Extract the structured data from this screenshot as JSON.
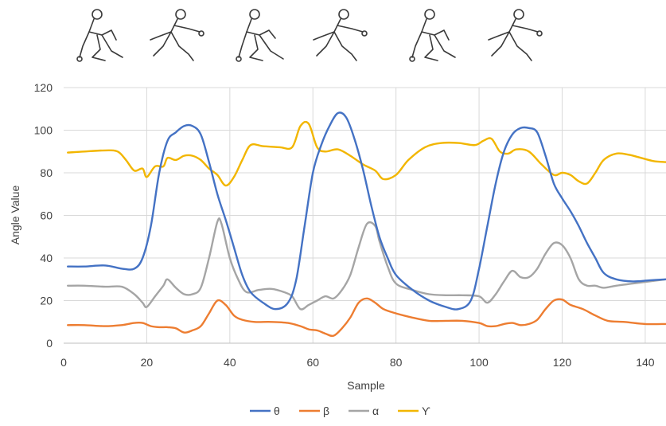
{
  "chart_data": {
    "type": "line",
    "title": "",
    "xlabel": "Sample",
    "ylabel": "Angle Value",
    "xlim": [
      0,
      145
    ],
    "ylim": [
      0,
      120
    ],
    "xticks": [
      0,
      20,
      40,
      60,
      80,
      100,
      120,
      140
    ],
    "yticks": [
      0,
      20,
      40,
      60,
      80,
      100,
      120
    ],
    "grid": true,
    "legend": "bottom-center",
    "series": [
      {
        "name": "θ",
        "color": "#4472C4",
        "points": [
          [
            1,
            36
          ],
          [
            5,
            36
          ],
          [
            10,
            36.5
          ],
          [
            14,
            35
          ],
          [
            17,
            35
          ],
          [
            19,
            40
          ],
          [
            21,
            55
          ],
          [
            23,
            80
          ],
          [
            25,
            95
          ],
          [
            27,
            99
          ],
          [
            29,
            102
          ],
          [
            31,
            102
          ],
          [
            33,
            98
          ],
          [
            35,
            85
          ],
          [
            37,
            70
          ],
          [
            39,
            58
          ],
          [
            41,
            45
          ],
          [
            43,
            32
          ],
          [
            45,
            24
          ],
          [
            48,
            19
          ],
          [
            51,
            16
          ],
          [
            54,
            19
          ],
          [
            56,
            30
          ],
          [
            58,
            55
          ],
          [
            60,
            80
          ],
          [
            62,
            93
          ],
          [
            64,
            102
          ],
          [
            66,
            108
          ],
          [
            68,
            106
          ],
          [
            70,
            96
          ],
          [
            72,
            82
          ],
          [
            74,
            65
          ],
          [
            76,
            50
          ],
          [
            78,
            40
          ],
          [
            80,
            32
          ],
          [
            84,
            25
          ],
          [
            88,
            20
          ],
          [
            92,
            17
          ],
          [
            95,
            16
          ],
          [
            98,
            20
          ],
          [
            100,
            35
          ],
          [
            102,
            55
          ],
          [
            104,
            75
          ],
          [
            106,
            90
          ],
          [
            108,
            98
          ],
          [
            110,
            101
          ],
          [
            112,
            101
          ],
          [
            114,
            99
          ],
          [
            116,
            88
          ],
          [
            118,
            75
          ],
          [
            120,
            68
          ],
          [
            122,
            62
          ],
          [
            124,
            55
          ],
          [
            126,
            47
          ],
          [
            128,
            40
          ],
          [
            130,
            33
          ],
          [
            133,
            30
          ],
          [
            137,
            29
          ],
          [
            141,
            29.5
          ],
          [
            145,
            30
          ]
        ]
      },
      {
        "name": "β",
        "color": "#ED7D31",
        "points": [
          [
            1,
            8.5
          ],
          [
            5,
            8.5
          ],
          [
            10,
            8
          ],
          [
            14,
            8.5
          ],
          [
            17,
            9.5
          ],
          [
            19,
            9.5
          ],
          [
            21,
            8
          ],
          [
            23,
            7.5
          ],
          [
            25,
            7.5
          ],
          [
            27,
            7
          ],
          [
            29,
            5
          ],
          [
            31,
            6
          ],
          [
            33,
            8
          ],
          [
            35,
            14
          ],
          [
            37,
            20
          ],
          [
            39,
            18
          ],
          [
            41,
            13
          ],
          [
            43,
            11
          ],
          [
            46,
            10
          ],
          [
            50,
            10
          ],
          [
            54,
            9.5
          ],
          [
            57,
            8
          ],
          [
            59,
            6.5
          ],
          [
            61,
            6
          ],
          [
            63,
            4.5
          ],
          [
            65,
            3.5
          ],
          [
            67,
            7
          ],
          [
            69,
            12
          ],
          [
            71,
            19
          ],
          [
            73,
            21
          ],
          [
            75,
            19
          ],
          [
            77,
            16
          ],
          [
            80,
            14
          ],
          [
            84,
            12
          ],
          [
            88,
            10.5
          ],
          [
            92,
            10.5
          ],
          [
            96,
            10.5
          ],
          [
            100,
            9.5
          ],
          [
            102,
            8
          ],
          [
            104,
            8
          ],
          [
            106,
            9
          ],
          [
            108,
            9.5
          ],
          [
            110,
            8.5
          ],
          [
            112,
            9
          ],
          [
            114,
            11
          ],
          [
            116,
            16
          ],
          [
            118,
            20
          ],
          [
            120,
            20.5
          ],
          [
            122,
            18
          ],
          [
            125,
            16
          ],
          [
            128,
            13
          ],
          [
            131,
            10.5
          ],
          [
            135,
            10
          ],
          [
            140,
            9
          ],
          [
            145,
            9
          ]
        ]
      },
      {
        "name": "α",
        "color": "#A5A5A5",
        "points": [
          [
            1,
            27
          ],
          [
            5,
            27
          ],
          [
            10,
            26.5
          ],
          [
            14,
            26.5
          ],
          [
            17,
            23
          ],
          [
            19,
            19
          ],
          [
            20,
            17
          ],
          [
            22,
            22
          ],
          [
            24,
            27
          ],
          [
            25,
            30
          ],
          [
            27,
            26
          ],
          [
            29,
            23
          ],
          [
            31,
            23
          ],
          [
            33,
            26
          ],
          [
            35,
            40
          ],
          [
            37,
            57
          ],
          [
            38,
            56
          ],
          [
            40,
            40
          ],
          [
            42,
            30
          ],
          [
            44,
            24
          ],
          [
            47,
            25
          ],
          [
            50,
            25.5
          ],
          [
            53,
            24
          ],
          [
            55,
            22
          ],
          [
            57,
            16
          ],
          [
            59,
            18
          ],
          [
            61,
            20
          ],
          [
            63,
            22
          ],
          [
            65,
            21
          ],
          [
            67,
            25
          ],
          [
            69,
            32
          ],
          [
            71,
            45
          ],
          [
            73,
            56
          ],
          [
            75,
            55
          ],
          [
            76,
            48
          ],
          [
            78,
            36
          ],
          [
            80,
            28
          ],
          [
            84,
            25
          ],
          [
            88,
            23
          ],
          [
            92,
            22.5
          ],
          [
            96,
            22.5
          ],
          [
            100,
            22
          ],
          [
            102,
            19
          ],
          [
            104,
            23
          ],
          [
            106,
            29
          ],
          [
            108,
            34
          ],
          [
            110,
            31
          ],
          [
            112,
            31
          ],
          [
            114,
            35
          ],
          [
            116,
            42
          ],
          [
            118,
            47
          ],
          [
            120,
            46
          ],
          [
            122,
            40
          ],
          [
            124,
            30
          ],
          [
            126,
            27
          ],
          [
            128,
            27
          ],
          [
            130,
            26
          ],
          [
            133,
            27
          ],
          [
            137,
            28
          ],
          [
            141,
            29
          ],
          [
            145,
            30
          ]
        ]
      },
      {
        "name": "ϒ",
        "color": "#F2B600",
        "points": [
          [
            1,
            89.5
          ],
          [
            5,
            90
          ],
          [
            10,
            90.5
          ],
          [
            13,
            90
          ],
          [
            15,
            86
          ],
          [
            17,
            81
          ],
          [
            19,
            82
          ],
          [
            20,
            78
          ],
          [
            22,
            83
          ],
          [
            24,
            83
          ],
          [
            25,
            87
          ],
          [
            27,
            86
          ],
          [
            29,
            88
          ],
          [
            31,
            88
          ],
          [
            33,
            86
          ],
          [
            35,
            82
          ],
          [
            37,
            79
          ],
          [
            39,
            74
          ],
          [
            41,
            78
          ],
          [
            43,
            86
          ],
          [
            45,
            93
          ],
          [
            48,
            92.5
          ],
          [
            52,
            92
          ],
          [
            55,
            92
          ],
          [
            57,
            102
          ],
          [
            59,
            103
          ],
          [
            61,
            92
          ],
          [
            63,
            90
          ],
          [
            66,
            91
          ],
          [
            69,
            88
          ],
          [
            72,
            84
          ],
          [
            75,
            81
          ],
          [
            77,
            77
          ],
          [
            80,
            79
          ],
          [
            83,
            86
          ],
          [
            87,
            92
          ],
          [
            91,
            94
          ],
          [
            95,
            94
          ],
          [
            99,
            93
          ],
          [
            101,
            95
          ],
          [
            103,
            96
          ],
          [
            105,
            90
          ],
          [
            107,
            89
          ],
          [
            109,
            91
          ],
          [
            112,
            90
          ],
          [
            115,
            84
          ],
          [
            118,
            79
          ],
          [
            120,
            80
          ],
          [
            122,
            79
          ],
          [
            124,
            76
          ],
          [
            126,
            75
          ],
          [
            128,
            80
          ],
          [
            130,
            86
          ],
          [
            133,
            89
          ],
          [
            136,
            88.5
          ],
          [
            139,
            87
          ],
          [
            142,
            85.5
          ],
          [
            145,
            85
          ]
        ]
      }
    ]
  }
}
